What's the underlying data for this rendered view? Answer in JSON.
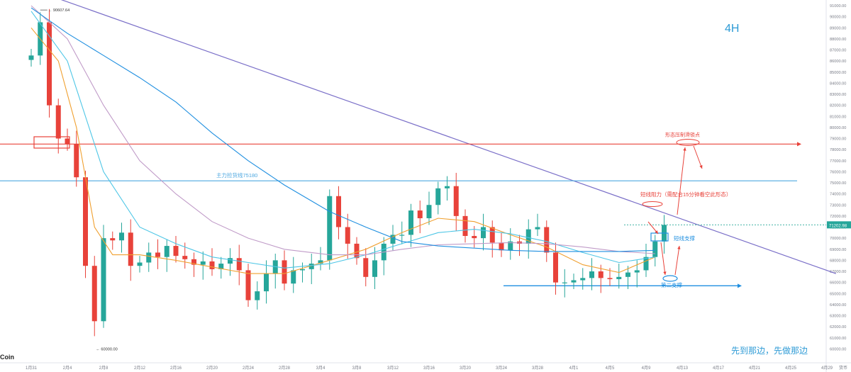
{
  "chart_data": {
    "type": "candlestick",
    "timeframe": "4H",
    "watermark": "Coin",
    "caption": "先到那边，先做那边",
    "high_label": "90607.64",
    "low_label": "60000.00",
    "price_tag": "71202.98",
    "axis_tag": "货币",
    "ylim": [
      59000,
      91000
    ],
    "y_ticks": [
      60000,
      61000,
      62000,
      63000,
      64000,
      65000,
      66000,
      67000,
      68000,
      69000,
      70000,
      71000,
      72000,
      73000,
      74000,
      75000,
      76000,
      77000,
      78000,
      79000,
      80000,
      81000,
      82000,
      83000,
      84000,
      85000,
      86000,
      87000,
      88000,
      89000,
      90000,
      91000
    ],
    "x_ticks": [
      "1月31",
      "2月4",
      "2月8",
      "2月12",
      "2月16",
      "2月20",
      "2月24",
      "2月28",
      "3月4",
      "3月8",
      "3月12",
      "3月16",
      "3月20",
      "3月24",
      "3月28",
      "4月1",
      "4月5",
      "4月9",
      "4月13",
      "4月17",
      "4月21",
      "4月25",
      "4月29"
    ],
    "last_data_date": "4月10",
    "levels": [
      {
        "name": "main-cost-line",
        "price": 75180,
        "label": "主力捡货线75180",
        "color": "#4fa8e0"
      },
      {
        "name": "pattern-target",
        "price": 78500,
        "label": "形态压制滑锁点",
        "color": "#e8423a"
      }
    ],
    "annotations": {
      "short_resistance": "短线阻力（需配合15分钟看空此形态）",
      "short_support": "短线支撑",
      "second_support": "第二支撑"
    },
    "trendline": {
      "from": [
        "1月31",
        92500
      ],
      "to": [
        "4月29",
        66800
      ],
      "color": "#7a6fc8"
    },
    "series": [
      {
        "name": "close",
        "color": "#26a69a",
        "points": [
          [
            "1月31",
            86500
          ],
          [
            "2月1",
            89500
          ],
          [
            "2月2",
            82000
          ],
          [
            "2月3",
            79000
          ],
          [
            "2月4",
            78500
          ],
          [
            "2月5",
            75500
          ],
          [
            "2月6",
            67500
          ],
          [
            "2月7",
            62500
          ],
          [
            "2月8",
            70000
          ],
          [
            "2月9",
            69800
          ],
          [
            "2月10",
            70500
          ],
          [
            "2月11",
            67500
          ],
          [
            "2月12",
            67800
          ],
          [
            "2月13",
            68700
          ],
          [
            "2月14",
            68300
          ],
          [
            "2月15",
            69300
          ],
          [
            "2月16",
            68400
          ],
          [
            "2月17",
            68100
          ],
          [
            "2月18",
            67600
          ],
          [
            "2月19",
            67900
          ],
          [
            "2月20",
            67200
          ],
          [
            "2月21",
            67700
          ],
          [
            "2月22",
            68200
          ],
          [
            "2月23",
            67100
          ],
          [
            "2月24",
            64400
          ],
          [
            "2月25",
            65200
          ],
          [
            "2月26",
            66800
          ],
          [
            "2月27",
            68000
          ],
          [
            "2月28",
            65900
          ],
          [
            "2月29",
            67100
          ],
          [
            "3月1",
            67200
          ],
          [
            "3月2",
            67700
          ],
          [
            "3月3",
            68000
          ],
          [
            "3月4",
            73800
          ],
          [
            "3月5",
            71000
          ],
          [
            "3月6",
            69500
          ],
          [
            "3月7",
            68200
          ],
          [
            "3月8",
            66500
          ],
          [
            "3月9",
            68000
          ],
          [
            "3月10",
            69500
          ],
          [
            "3月11",
            70300
          ],
          [
            "3月12",
            70300
          ],
          [
            "3月13",
            72500
          ],
          [
            "3月14",
            71800
          ],
          [
            "3月15",
            73000
          ],
          [
            "3月16",
            74500
          ],
          [
            "3月17",
            74700
          ],
          [
            "3月18",
            72000
          ],
          [
            "3월19",
            70200
          ],
          [
            "3月20",
            70000
          ],
          [
            "3月21",
            71000
          ],
          [
            "3月22",
            69600
          ],
          [
            "3月23",
            68900
          ],
          [
            "3月24",
            69700
          ],
          [
            "3月25",
            69500
          ],
          [
            "3月26",
            70800
          ],
          [
            "3月27",
            71000
          ],
          [
            "3月28",
            68700
          ],
          [
            "3月29",
            66000
          ],
          [
            "3月30",
            66000
          ],
          [
            "3月31",
            66200
          ],
          [
            "4月1",
            66400
          ],
          [
            "4月2",
            67000
          ],
          [
            "4月3",
            66400
          ],
          [
            "4月4",
            66300
          ],
          [
            "4月5",
            66500
          ],
          [
            "4月6",
            66900
          ],
          [
            "4月7",
            67100
          ],
          [
            "4月8",
            68300
          ],
          [
            "4月9",
            69700
          ],
          [
            "4月10",
            71200
          ]
        ]
      },
      {
        "name": "ma-fast",
        "color": "#f0a030",
        "points": [
          [
            "1月31",
            89000
          ],
          [
            "2月3",
            86000
          ],
          [
            "2月5",
            80000
          ],
          [
            "2月7",
            71000
          ],
          [
            "2月9",
            68500
          ],
          [
            "2月12",
            68500
          ],
          [
            "2月16",
            68000
          ],
          [
            "2月20",
            67400
          ],
          [
            "2月24",
            66800
          ],
          [
            "2月28",
            66800
          ],
          [
            "3月4",
            68000
          ],
          [
            "3月8",
            69000
          ],
          [
            "3月12",
            70500
          ],
          [
            "3月16",
            71800
          ],
          [
            "3月20",
            71500
          ],
          [
            "3月24",
            70300
          ],
          [
            "3月28",
            69200
          ],
          [
            "4月1",
            67600
          ],
          [
            "4月5",
            66900
          ],
          [
            "4月9",
            68300
          ]
        ]
      },
      {
        "name": "ma-mid",
        "color": "#4dc6e6",
        "points": [
          [
            "1月31",
            90500
          ],
          [
            "2月4",
            86000
          ],
          [
            "2月8",
            76000
          ],
          [
            "2月12",
            71000
          ],
          [
            "2月16",
            69500
          ],
          [
            "2月20",
            68300
          ],
          [
            "2月24",
            67800
          ],
          [
            "2月28",
            67300
          ],
          [
            "3月4",
            67700
          ],
          [
            "3月8",
            68500
          ],
          [
            "3月12",
            69500
          ],
          [
            "3月16",
            70500
          ],
          [
            "3月20",
            70800
          ],
          [
            "3月24",
            70400
          ],
          [
            "3月28",
            69700
          ],
          [
            "4月1",
            68700
          ],
          [
            "4月5",
            67800
          ],
          [
            "4月9",
            68300
          ]
        ]
      },
      {
        "name": "ma-slow",
        "color": "#c09bc8",
        "points": [
          [
            "1月31",
            91000
          ],
          [
            "2月4",
            88000
          ],
          [
            "2月8",
            82000
          ],
          [
            "2月12",
            77000
          ],
          [
            "2月16",
            74000
          ],
          [
            "2月20",
            71500
          ],
          [
            "2月24",
            70000
          ],
          [
            "2月28",
            69000
          ],
          [
            "3月4",
            68500
          ],
          [
            "3月8",
            68500
          ],
          [
            "3月12",
            69000
          ],
          [
            "3月16",
            69400
          ],
          [
            "3月20",
            69500
          ],
          [
            "3月24",
            69600
          ],
          [
            "3月28",
            69500
          ],
          [
            "4月1",
            69200
          ],
          [
            "4月5",
            68800
          ],
          [
            "4月9",
            68600
          ]
        ]
      },
      {
        "name": "ma-long",
        "color": "#1f8fe0",
        "points": [
          [
            "1月31",
            90800
          ],
          [
            "2月4",
            88500
          ],
          [
            "2月8",
            86500
          ],
          [
            "2月12",
            84500
          ],
          [
            "2月16",
            82300
          ],
          [
            "2月20",
            79500
          ],
          [
            "2月24",
            77000
          ],
          [
            "2月28",
            74800
          ],
          [
            "3月4",
            72400
          ],
          [
            "3月8",
            71000
          ],
          [
            "3月12",
            69700
          ],
          [
            "3月16",
            69300
          ],
          [
            "3月20",
            69100
          ],
          [
            "3月24",
            68900
          ],
          [
            "3月28",
            68800
          ],
          [
            "4月1",
            68800
          ],
          [
            "4月5",
            68800
          ],
          [
            "4月9",
            68900
          ]
        ]
      }
    ]
  }
}
